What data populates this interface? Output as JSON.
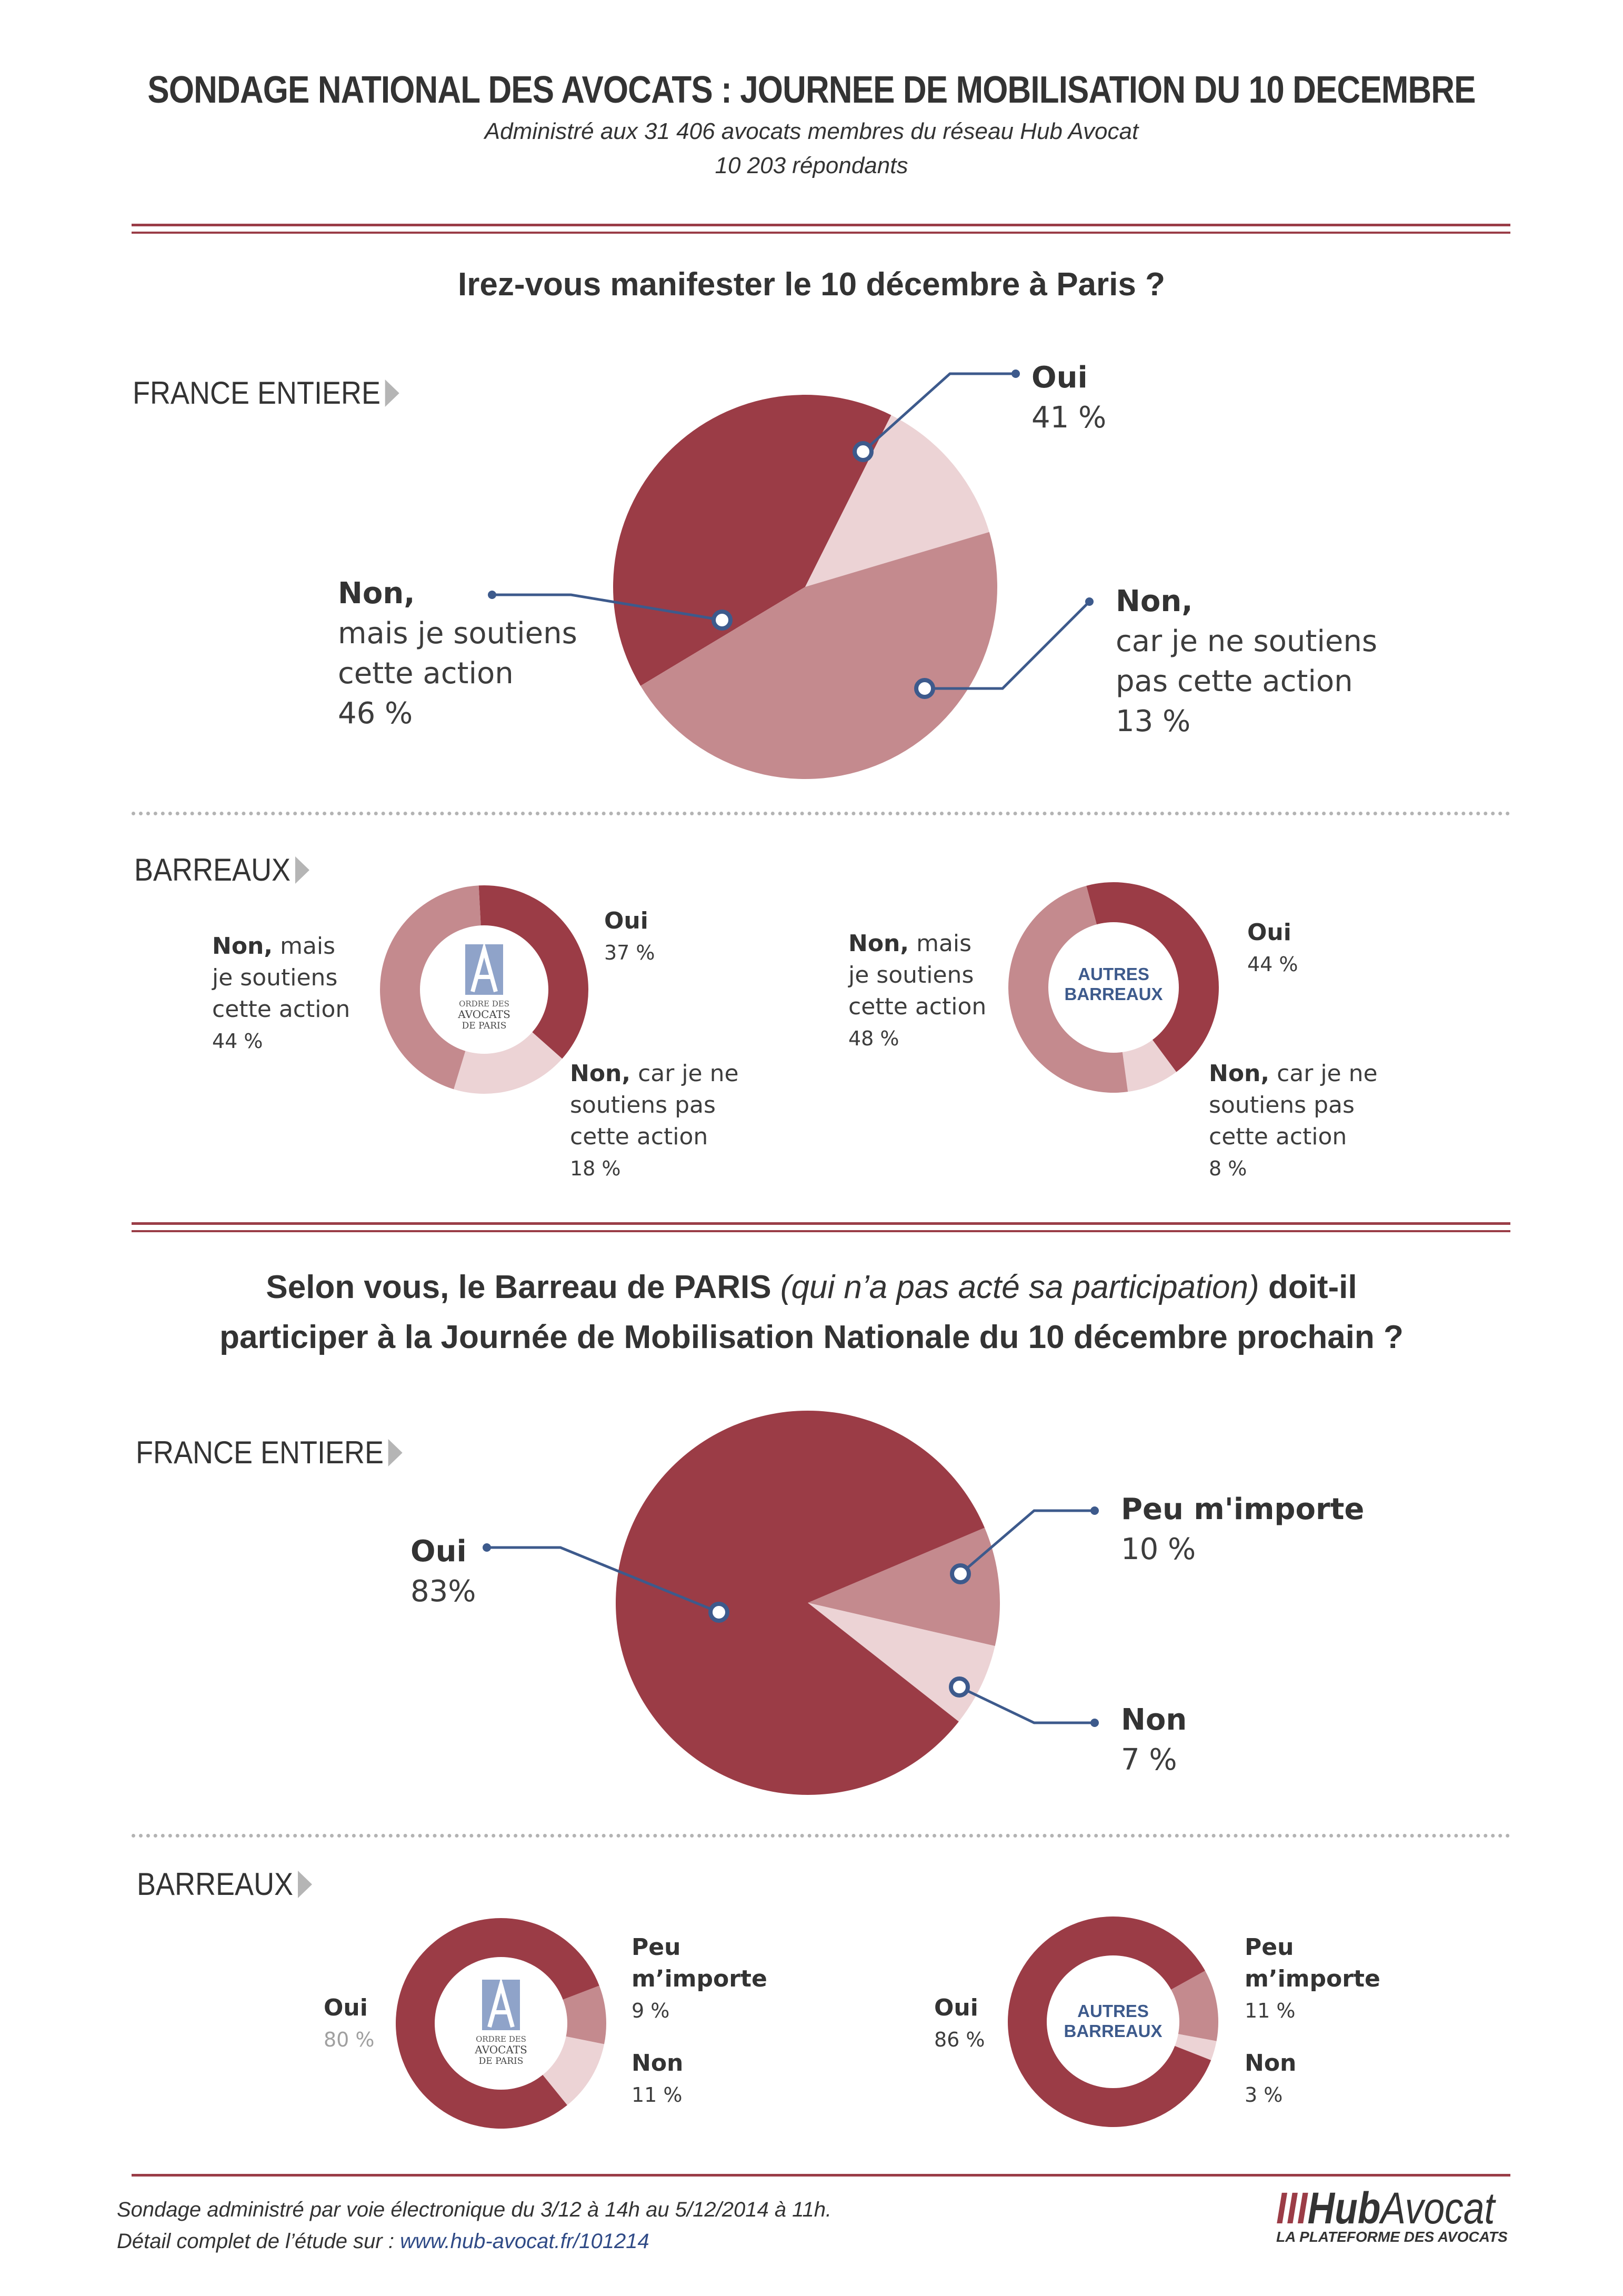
{
  "header": {
    "title": "SONDAGE NATIONAL DES AVOCATS : JOURNEE DE MOBILISATION DU 10 DECEMBRE",
    "subtitle1": "Administré aux 31 406 avocats membres du réseau Hub Avocat",
    "subtitle2": "10 203 répondants"
  },
  "q1": {
    "question": "Irez-vous manifester le 10 décembre à Paris ?",
    "section_france": "FRANCE ENTIERE",
    "section_barreaux": "BARREAUX"
  },
  "q2": {
    "question_part1": "Selon vous,  le Barreau de PARIS",
    "question_italic": "(qui n’a pas acté sa participation)",
    "question_part2": "doit-il",
    "question_line2": "participer à la Journée de Mobilisation Nationale du 10 décembre prochain ?",
    "section_france": "FRANCE ENTIERE",
    "section_barreaux": "BARREAUX"
  },
  "labels": {
    "q1_france": {
      "oui": "Oui",
      "oui_pct": "41 %",
      "non_car_1": "Non,",
      "non_car_2": "car je ne soutiens",
      "non_car_3": "pas cette action",
      "non_car_pct": "13 %",
      "non_mais_1": "Non,",
      "non_mais_2": "mais je soutiens",
      "non_mais_3": "cette action",
      "non_mais_pct": "46 %"
    },
    "q1_paris": {
      "oui": "Oui",
      "oui_pct": "37 %",
      "non_mais_b": "Non,",
      "non_mais_1": "mais",
      "non_mais_2": "je soutiens",
      "non_mais_3": "cette action",
      "non_mais_pct": "44 %",
      "non_car_b": "Non,",
      "non_car_1": "car je ne",
      "non_car_2": "soutiens pas",
      "non_car_3": "cette action",
      "non_car_pct": "18 %"
    },
    "q1_autres": {
      "oui": "Oui",
      "oui_pct": "44 %",
      "non_mais_b": "Non,",
      "non_mais_1": "mais",
      "non_mais_2": "je soutiens",
      "non_mais_3": "cette action",
      "non_mais_pct": "48 %",
      "non_car_b": "Non,",
      "non_car_1": "car je ne",
      "non_car_2": "soutiens pas",
      "non_car_3": "cette action",
      "non_car_pct": "8 %"
    },
    "q2_france": {
      "oui": "Oui",
      "oui_pct": "83%",
      "peu": "Peu m'importe",
      "peu_pct": "10 %",
      "non": "Non",
      "non_pct": "7 %"
    },
    "q2_paris": {
      "oui": "Oui",
      "oui_pct": "80 %",
      "peu_1": "Peu",
      "peu_2": "m’importe",
      "peu_pct": "9 %",
      "non": "Non",
      "non_pct": "11 %"
    },
    "q2_autres": {
      "oui": "Oui",
      "oui_pct": "86 %",
      "peu_1": "Peu",
      "peu_2": "m’importe",
      "peu_pct": "11 %",
      "non": "Non",
      "non_pct": "3 %"
    }
  },
  "centers": {
    "paris_1": "ORDRE DES",
    "paris_2": "AVOCATS",
    "paris_3": "DE PARIS",
    "autres_1": "AUTRES",
    "autres_2": "BARREAUX"
  },
  "footer": {
    "line1": "Sondage administré par voie électronique du 3/12 à 14h  au 5/12/2014 à 11h.",
    "line2_prefix": "Détail complet de l’étude sur :",
    "link": "www.hub-avocat.fr/101214",
    "logo_bars": "III",
    "logo_hub": "Hub",
    "logo_avocat": "Avocat",
    "logo_tagline": "LA PLATEFORME DES AVOCATS"
  },
  "colors": {
    "dark": "#9b3c46",
    "mid": "#c48a8e",
    "light": "#ecd3d5",
    "leader": "#3d5a8c",
    "center_text": "#3d5a8c"
  },
  "chart_data": [
    {
      "type": "pie",
      "categories": [
        "Oui",
        "Non, car je ne soutiens pas cette action",
        "Non, mais je soutiens cette action"
      ],
      "values": [
        41,
        13,
        46
      ]
    },
    {
      "type": "pie",
      "categories": [
        "Oui",
        "Non, car je ne soutiens pas cette action",
        "Non, mais je soutiens cette action"
      ],
      "values": [
        37,
        18,
        44
      ]
    },
    {
      "type": "pie",
      "categories": [
        "Oui",
        "Non, car je ne soutiens pas cette action",
        "Non, mais je soutiens cette action"
      ],
      "values": [
        44,
        8,
        48
      ]
    },
    {
      "type": "pie",
      "categories": [
        "Peu m'importe",
        "Non",
        "Oui"
      ],
      "values": [
        10,
        7,
        83
      ]
    },
    {
      "type": "pie",
      "categories": [
        "Peu m’importe",
        "Non",
        "Oui"
      ],
      "values": [
        9,
        11,
        80
      ]
    },
    {
      "type": "pie",
      "categories": [
        "Peu m’importe",
        "Non",
        "Oui"
      ],
      "values": [
        11,
        3,
        86
      ]
    }
  ]
}
